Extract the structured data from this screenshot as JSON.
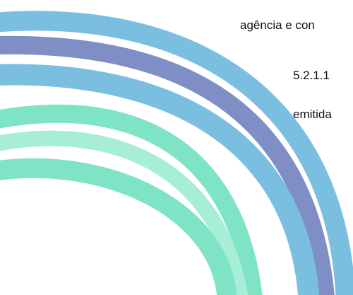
{
  "document": {
    "lines": [
      "agência e con",
      "5.2.1.1",
      "emitida"
    ]
  }
}
